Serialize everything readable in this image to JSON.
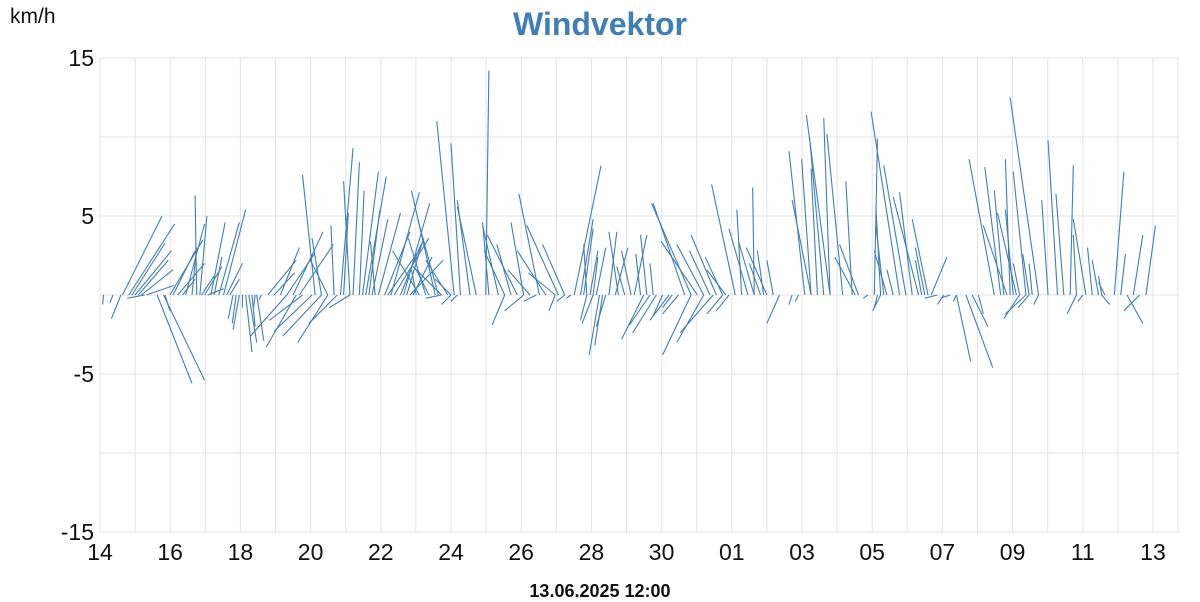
{
  "chart_data": {
    "type": "vector",
    "title": "Windvektor",
    "ylabel": "km/h",
    "footer": "13.06.2025 12:00",
    "ylim": [
      -15,
      15
    ],
    "yticks": [
      15,
      5,
      -5,
      -15
    ],
    "grid_y": [
      15,
      10,
      5,
      0,
      -5,
      -10,
      -15
    ],
    "xlim": [
      14.0,
      14.8
    ],
    "x_day_offset_ticks": [
      0,
      2,
      4,
      6,
      8,
      10,
      12,
      14,
      16,
      18,
      20,
      22,
      24,
      26,
      28,
      30
    ],
    "x_tick_labels": [
      "14",
      "16",
      "18",
      "20",
      "22",
      "24",
      "26",
      "28",
      "30",
      "01",
      "03",
      "05",
      "07",
      "09",
      "11",
      "13"
    ],
    "grid": true,
    "series_color": "#3f7fb6",
    "vectors": [
      [
        0.0,
        -0.1,
        -0.6
      ],
      [
        0.3,
        -0.4,
        -0.5
      ],
      [
        0.55,
        -1.2,
        -1.5
      ],
      [
        0.6,
        5.0,
        5.0
      ],
      [
        0.8,
        5.8,
        4.5
      ],
      [
        0.9,
        4.2,
        3.3
      ],
      [
        1.0,
        4.6,
        2.8
      ],
      [
        1.1,
        3.8,
        2.2
      ],
      [
        1.2,
        4.0,
        1.6
      ],
      [
        1.35,
        3.5,
        0.6
      ],
      [
        1.3,
        -2.2,
        -0.2
      ],
      [
        1.7,
        4.4,
        -5.6
      ],
      [
        1.9,
        5.2,
        -5.4
      ],
      [
        1.95,
        0.6,
        -1.0
      ],
      [
        2.1,
        4.2,
        3.5
      ],
      [
        2.2,
        2.8,
        2.8
      ],
      [
        2.35,
        3.4,
        2.0
      ],
      [
        2.5,
        1.6,
        1.0
      ],
      [
        2.6,
        2.4,
        4.5
      ],
      [
        2.8,
        0.6,
        3.0
      ],
      [
        2.95,
        -0.2,
        6.3
      ],
      [
        3.05,
        0.9,
        5.0
      ],
      [
        3.1,
        1.6,
        1.2
      ],
      [
        3.2,
        2.2,
        1.8
      ],
      [
        3.3,
        2.0,
        0.4
      ],
      [
        3.4,
        1.8,
        4.6
      ],
      [
        3.5,
        1.0,
        2.4
      ],
      [
        3.65,
        2.6,
        4.6
      ],
      [
        3.8,
        2.8,
        5.4
      ],
      [
        3.9,
        2.0,
        2.0
      ],
      [
        4.0,
        1.2,
        1.0
      ],
      [
        4.1,
        -0.6,
        -1.5
      ],
      [
        4.2,
        -0.5,
        -1.8
      ],
      [
        4.3,
        -0.8,
        -2.2
      ],
      [
        4.4,
        0.0,
        -0.8
      ],
      [
        4.5,
        0.8,
        -3.6
      ],
      [
        4.6,
        1.0,
        -3.0
      ],
      [
        4.7,
        0.4,
        -2.0
      ],
      [
        4.8,
        -0.2,
        -0.8
      ],
      [
        4.85,
        0.9,
        -2.9
      ],
      [
        5.0,
        -0.3,
        -0.3
      ],
      [
        5.2,
        3.6,
        2.2
      ],
      [
        5.4,
        2.6,
        1.4
      ],
      [
        5.6,
        2.4,
        3.0
      ],
      [
        5.8,
        3.5,
        2.6
      ],
      [
        6.0,
        3.8,
        4.0
      ],
      [
        6.2,
        4.3,
        3.2
      ],
      [
        5.8,
        -4.6,
        -2.6
      ],
      [
        6.1,
        -3.8,
        -3.3
      ],
      [
        6.3,
        -4.2,
        -1.6
      ],
      [
        6.6,
        -4.8,
        -2.3
      ],
      [
        6.9,
        -4.9,
        -2.6
      ],
      [
        7.1,
        -3.8,
        -3.0
      ],
      [
        7.4,
        -3.6,
        -1.8
      ],
      [
        7.8,
        -2.6,
        -0.8
      ],
      [
        6.7,
        -1.6,
        7.6
      ],
      [
        6.9,
        -1.2,
        3.6
      ],
      [
        7.1,
        -2.2,
        2.2
      ],
      [
        7.3,
        -0.4,
        4.4
      ],
      [
        7.5,
        1.6,
        9.3
      ],
      [
        7.6,
        0.6,
        5.2
      ],
      [
        7.8,
        -0.8,
        7.2
      ],
      [
        7.9,
        0.8,
        8.4
      ],
      [
        8.1,
        0.6,
        6.6
      ],
      [
        8.2,
        2.0,
        7.8
      ],
      [
        8.3,
        2.6,
        7.5
      ],
      [
        8.4,
        1.4,
        5.4
      ],
      [
        8.5,
        2.0,
        4.8
      ],
      [
        8.6,
        -0.6,
        3.4
      ],
      [
        8.7,
        2.8,
        5.2
      ],
      [
        8.9,
        3.2,
        4.0
      ],
      [
        9.0,
        4.2,
        3.0
      ],
      [
        9.1,
        3.6,
        6.5
      ],
      [
        9.2,
        4.4,
        3.6
      ],
      [
        9.4,
        2.6,
        3.2
      ],
      [
        9.5,
        3.3,
        5.8
      ],
      [
        9.6,
        2.0,
        3.4
      ],
      [
        9.7,
        4.2,
        2.2
      ],
      [
        9.8,
        2.4,
        2.4
      ],
      [
        9.9,
        -0.6,
        1.6
      ],
      [
        10.0,
        -3.4,
        2.8
      ],
      [
        10.2,
        -2.2,
        3.6
      ],
      [
        10.3,
        -1.6,
        1.6
      ],
      [
        10.5,
        -3.0,
        6.6
      ],
      [
        10.6,
        -2.6,
        4.8
      ],
      [
        10.7,
        -3.6,
        1.8
      ],
      [
        10.9,
        -2.8,
        2.2
      ],
      [
        11.0,
        -2.0,
        1.0
      ],
      [
        10.7,
        -2.0,
        -0.2
      ],
      [
        11.0,
        -1.2,
        -0.6
      ],
      [
        11.2,
        -0.8,
        -0.4
      ],
      [
        11.1,
        -2.2,
        11.0
      ],
      [
        11.3,
        -1.2,
        9.6
      ],
      [
        11.6,
        -1.6,
        6.0
      ],
      [
        11.8,
        -2.4,
        5.6
      ],
      [
        12.1,
        0.4,
        14.2
      ],
      [
        12.2,
        -0.8,
        4.6
      ],
      [
        12.5,
        -2.0,
        4.4
      ],
      [
        12.7,
        -2.6,
        2.8
      ],
      [
        12.9,
        -1.8,
        3.2
      ],
      [
        13.1,
        -3.8,
        3.8
      ],
      [
        13.3,
        -1.6,
        4.6
      ],
      [
        13.5,
        -2.8,
        1.6
      ],
      [
        13.8,
        -2.6,
        6.4
      ],
      [
        14.0,
        -3.6,
        2.8
      ],
      [
        14.3,
        -3.4,
        1.4
      ],
      [
        14.4,
        -4.0,
        4.4
      ],
      [
        14.6,
        -2.8,
        3.2
      ],
      [
        12.7,
        -1.6,
        -1.9
      ],
      [
        13.3,
        -2.4,
        -1.0
      ],
      [
        13.7,
        -1.6,
        -0.4
      ],
      [
        14.3,
        -0.8,
        -1.0
      ],
      [
        14.6,
        -1.0,
        -0.4
      ],
      [
        14.8,
        -0.6,
        -0.2
      ],
      [
        14.9,
        3.4,
        8.2
      ],
      [
        15.1,
        1.6,
        4.8
      ],
      [
        15.2,
        1.2,
        4.2
      ],
      [
        15.3,
        -0.4,
        3.2
      ],
      [
        15.4,
        1.0,
        2.8
      ],
      [
        15.5,
        0.6,
        2.4
      ],
      [
        15.6,
        1.2,
        3.0
      ],
      [
        15.3,
        -0.8,
        -1.6
      ],
      [
        15.5,
        -1.4,
        -1.8
      ],
      [
        15.7,
        -1.3,
        -3.8
      ],
      [
        15.8,
        -1.0,
        -3.2
      ],
      [
        15.9,
        -1.2,
        -2.0
      ],
      [
        16.0,
        1.0,
        4.0
      ],
      [
        16.2,
        1.6,
        3.0
      ],
      [
        16.3,
        -1.2,
        4.0
      ],
      [
        16.5,
        -1.0,
        1.8
      ],
      [
        16.7,
        -1.2,
        2.8
      ],
      [
        16.8,
        1.6,
        3.8
      ],
      [
        17.0,
        -0.6,
        2.6
      ],
      [
        17.2,
        -0.8,
        3.8
      ],
      [
        17.4,
        -0.4,
        2.0
      ],
      [
        17.1,
        -2.8,
        -2.8
      ],
      [
        17.3,
        -2.6,
        -1.9
      ],
      [
        17.5,
        -3.0,
        -2.4
      ],
      [
        17.7,
        -1.2,
        -1.3
      ],
      [
        17.9,
        -2.4,
        -1.6
      ],
      [
        18.0,
        -1.2,
        -0.8
      ],
      [
        18.2,
        -2.0,
        -1.2
      ],
      [
        18.4,
        -4.0,
        5.8
      ],
      [
        18.6,
        -5.0,
        5.8
      ],
      [
        18.8,
        -4.6,
        3.4
      ],
      [
        19.0,
        -3.4,
        3.2
      ],
      [
        19.2,
        -2.6,
        2.8
      ],
      [
        19.4,
        -3.2,
        3.8
      ],
      [
        19.6,
        -2.2,
        2.4
      ],
      [
        19.7,
        -2.4,
        1.6
      ],
      [
        18.6,
        -3.6,
        -3.8
      ],
      [
        19.0,
        -3.4,
        -3.0
      ],
      [
        19.3,
        -4.2,
        -2.4
      ],
      [
        19.6,
        -2.0,
        -1.2
      ],
      [
        19.8,
        -1.6,
        -1.0
      ],
      [
        20.0,
        -3.0,
        7.0
      ],
      [
        20.2,
        -0.6,
        5.4
      ],
      [
        20.4,
        -2.4,
        4.2
      ],
      [
        20.6,
        -2.0,
        3.4
      ],
      [
        20.8,
        -1.4,
        2.0
      ],
      [
        21.0,
        -2.6,
        3.0
      ],
      [
        21.2,
        -0.8,
        2.2
      ],
      [
        20.6,
        -0.2,
        6.8
      ],
      [
        20.9,
        -0.8,
        2.8
      ],
      [
        21.4,
        -1.6,
        -1.8
      ],
      [
        21.8,
        -0.4,
        -0.6
      ],
      [
        22.0,
        -0.4,
        -0.4
      ],
      [
        22.2,
        -2.0,
        9.1
      ],
      [
        22.4,
        -2.4,
        6.0
      ],
      [
        22.6,
        -0.8,
        8.0
      ],
      [
        22.8,
        -1.8,
        10.0
      ],
      [
        23.0,
        -3.0,
        11.4
      ],
      [
        23.4,
        -2.0,
        10.2
      ],
      [
        23.7,
        -0.8,
        7.2
      ],
      [
        23.9,
        -2.4,
        3.2
      ],
      [
        22.4,
        -1.2,
        8.6
      ],
      [
        23.0,
        -0.8,
        11.2
      ],
      [
        23.8,
        -2.6,
        2.4
      ],
      [
        24.4,
        0.4,
        9.9
      ],
      [
        24.6,
        -0.6,
        5.6
      ],
      [
        24.7,
        -1.0,
        4.4
      ],
      [
        24.8,
        -1.6,
        2.8
      ],
      [
        25.0,
        -0.8,
        1.6
      ],
      [
        24.2,
        -0.6,
        -0.2
      ],
      [
        24.5,
        -0.4,
        -0.8
      ],
      [
        24.6,
        -1.0,
        -1.0
      ],
      [
        25.2,
        -3.6,
        11.6
      ],
      [
        25.4,
        -2.8,
        8.2
      ],
      [
        25.6,
        -1.6,
        6.5
      ],
      [
        25.8,
        -3.2,
        6.2
      ],
      [
        25.9,
        -0.8,
        2.2
      ],
      [
        26.0,
        -1.2,
        3.0
      ],
      [
        26.1,
        -2.0,
        4.8
      ],
      [
        26.2,
        2.0,
        2.4
      ],
      [
        26.4,
        -1.6,
        -0.2
      ],
      [
        26.6,
        -0.8,
        -0.6
      ],
      [
        26.8,
        -1.2,
        -0.2
      ],
      [
        27.0,
        -0.4,
        -0.4
      ],
      [
        27.0,
        1.8,
        -4.2
      ],
      [
        27.3,
        3.4,
        -4.6
      ],
      [
        27.5,
        2.0,
        -2.0
      ],
      [
        27.7,
        0.6,
        -1.2
      ],
      [
        28.2,
        -3.2,
        8.6
      ],
      [
        28.4,
        -2.0,
        8.1
      ],
      [
        28.5,
        -1.2,
        6.6
      ],
      [
        28.6,
        -3.0,
        4.4
      ],
      [
        28.7,
        -0.6,
        8.6
      ],
      [
        28.8,
        -1.0,
        5.4
      ],
      [
        28.9,
        -2.4,
        5.2
      ],
      [
        29.0,
        -0.8,
        2.0
      ],
      [
        29.2,
        -1.6,
        7.8
      ],
      [
        29.3,
        -0.8,
        2.6
      ],
      [
        29.4,
        -0.4,
        2.0
      ],
      [
        29.0,
        -2.0,
        -1.5
      ],
      [
        29.2,
        -2.6,
        -1.2
      ],
      [
        29.3,
        -1.4,
        -0.8
      ],
      [
        29.6,
        -0.6,
        -0.6
      ],
      [
        29.6,
        -3.6,
        12.5
      ],
      [
        29.9,
        -0.8,
        6.0
      ],
      [
        30.2,
        -1.2,
        9.8
      ],
      [
        30.4,
        -1.0,
        6.4
      ],
      [
        30.6,
        0.4,
        8.2
      ],
      [
        30.8,
        -0.4,
        3.8
      ],
      [
        30.8,
        -1.2,
        -1.2
      ],
      [
        31.0,
        -0.6,
        -0.4
      ],
      [
        31.1,
        -1.6,
        4.8
      ],
      [
        31.3,
        -0.6,
        3.0
      ],
      [
        31.5,
        -0.8,
        2.2
      ],
      [
        31.6,
        -0.4,
        1.2
      ],
      [
        31.7,
        -0.8,
        0.8
      ],
      [
        31.6,
        1.0,
        -0.6
      ],
      [
        32.0,
        1.2,
        7.8
      ],
      [
        32.2,
        0.6,
        2.6
      ],
      [
        32.6,
        1.2,
        3.8
      ],
      [
        33.0,
        1.2,
        4.4
      ],
      [
        32.4,
        2.0,
        -1.8
      ],
      [
        32.8,
        -2.0,
        -1.0
      ]
    ]
  }
}
